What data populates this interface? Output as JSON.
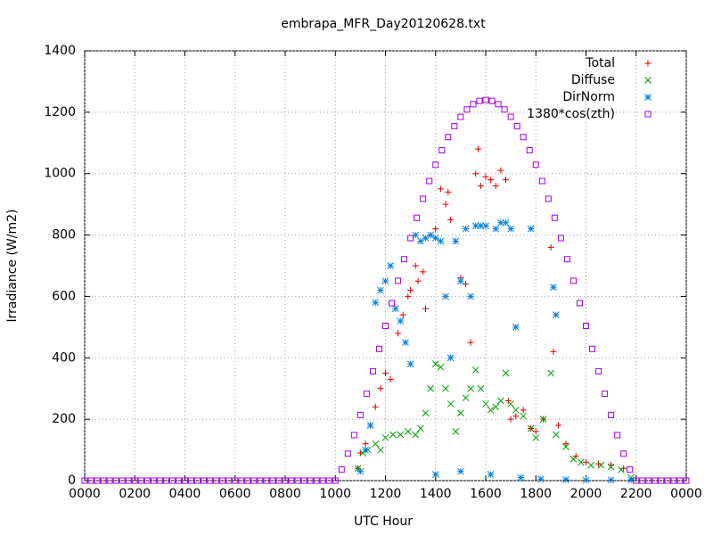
{
  "chart_data": {
    "type": "scatter",
    "title": "embrapa_MFR_Day20120628.txt",
    "x_label": "UTC Hour",
    "y_label": "Irradiance (W/m2)",
    "xlim": [
      0,
      24
    ],
    "ylim": [
      0,
      1400
    ],
    "xticks": [
      {
        "value": 0,
        "label": "0000"
      },
      {
        "value": 2,
        "label": "0200"
      },
      {
        "value": 4,
        "label": "0400"
      },
      {
        "value": 6,
        "label": "0600"
      },
      {
        "value": 8,
        "label": "0800"
      },
      {
        "value": 10,
        "label": "1000"
      },
      {
        "value": 12,
        "label": "1200"
      },
      {
        "value": 14,
        "label": "1400"
      },
      {
        "value": 16,
        "label": "1600"
      },
      {
        "value": 18,
        "label": "1800"
      },
      {
        "value": 20,
        "label": "2000"
      },
      {
        "value": 22,
        "label": "2200"
      },
      {
        "value": 24,
        "label": "0000"
      }
    ],
    "yticks": [
      0,
      200,
      400,
      600,
      800,
      1000,
      1200,
      1400
    ],
    "grid": true,
    "legend": "top-right",
    "series": [
      {
        "name": "Total",
        "color": "#e00000",
        "marker": "plus",
        "x": [
          10.9,
          11.0,
          11.2,
          11.4,
          11.6,
          11.8,
          12.0,
          12.2,
          12.5,
          12.7,
          12.9,
          13.0,
          13.2,
          13.3,
          13.5,
          13.6,
          13.8,
          14.0,
          14.2,
          14.4,
          14.5,
          14.6,
          14.8,
          15.0,
          15.2,
          15.4,
          15.6,
          15.7,
          15.8,
          16.0,
          16.2,
          16.4,
          16.6,
          16.8,
          16.9,
          17.0,
          17.2,
          17.5,
          17.8,
          18.0,
          18.3,
          18.6,
          18.7,
          18.9,
          19.2,
          19.6,
          20.0,
          20.5,
          21.0,
          21.5
        ],
        "values": [
          40,
          90,
          120,
          180,
          240,
          300,
          350,
          330,
          480,
          540,
          600,
          620,
          700,
          650,
          680,
          560,
          800,
          820,
          950,
          900,
          940,
          850,
          780,
          660,
          640,
          450,
          1000,
          1080,
          960,
          990,
          980,
          960,
          1010,
          980,
          260,
          200,
          210,
          230,
          170,
          160,
          200,
          760,
          420,
          180,
          120,
          80,
          60,
          55,
          50,
          40
        ]
      },
      {
        "name": "Diffuse",
        "color": "#00a000",
        "marker": "cross",
        "x": [
          10.9,
          11.1,
          11.3,
          11.6,
          11.8,
          12.0,
          12.3,
          12.6,
          12.9,
          13.2,
          13.4,
          13.6,
          13.8,
          14.0,
          14.2,
          14.4,
          14.6,
          14.8,
          15.0,
          15.2,
          15.4,
          15.6,
          15.8,
          16.0,
          16.2,
          16.4,
          16.6,
          16.8,
          17.0,
          17.2,
          17.5,
          17.8,
          18.0,
          18.3,
          18.6,
          18.8,
          19.2,
          19.5,
          19.8,
          20.2,
          20.6,
          21.0,
          21.4,
          21.8
        ],
        "values": [
          40,
          90,
          100,
          120,
          100,
          140,
          150,
          150,
          160,
          150,
          170,
          220,
          300,
          380,
          370,
          300,
          250,
          160,
          220,
          270,
          300,
          360,
          300,
          250,
          230,
          240,
          260,
          350,
          250,
          230,
          210,
          170,
          140,
          200,
          350,
          150,
          110,
          70,
          60,
          50,
          50,
          45,
          35,
          10
        ]
      },
      {
        "name": "DirNorm",
        "color": "#0080e0",
        "marker": "star",
        "x": [
          11.0,
          11.2,
          11.4,
          11.6,
          11.8,
          12.0,
          12.2,
          12.4,
          12.6,
          12.8,
          13.0,
          13.2,
          13.4,
          13.6,
          13.8,
          14.0,
          14.0,
          14.2,
          14.4,
          14.6,
          14.8,
          15.0,
          15.0,
          15.2,
          15.4,
          15.6,
          15.8,
          16.0,
          16.2,
          16.4,
          16.6,
          16.8,
          17.0,
          17.2,
          17.4,
          17.8,
          18.2,
          18.7,
          18.8,
          19.2,
          20.0,
          21.0,
          21.8
        ],
        "values": [
          30,
          100,
          180,
          580,
          620,
          650,
          700,
          560,
          520,
          450,
          380,
          800,
          780,
          790,
          800,
          790,
          20,
          780,
          600,
          400,
          780,
          650,
          30,
          820,
          600,
          830,
          830,
          830,
          20,
          820,
          840,
          840,
          820,
          500,
          10,
          820,
          5,
          630,
          540,
          3,
          2,
          2,
          2
        ]
      },
      {
        "name": "1380*cos(zth)",
        "color": "#a000e0",
        "marker": "square",
        "x": [
          0,
          0.25,
          0.5,
          0.75,
          1,
          1.25,
          1.5,
          1.75,
          2,
          2.25,
          2.5,
          2.75,
          3,
          3.25,
          3.5,
          3.75,
          4,
          4.25,
          4.5,
          4.75,
          5,
          5.25,
          5.5,
          5.75,
          6,
          6.25,
          6.5,
          6.75,
          7,
          7.25,
          7.5,
          7.75,
          8,
          8.25,
          8.5,
          8.75,
          9,
          9.25,
          9.5,
          9.75,
          10,
          10.25,
          10.5,
          10.75,
          11,
          11.25,
          11.5,
          11.75,
          12,
          12.25,
          12.5,
          12.75,
          13,
          13.25,
          13.5,
          13.75,
          14,
          14.25,
          14.5,
          14.75,
          15,
          15.25,
          15.5,
          15.75,
          16,
          16.25,
          16.5,
          16.75,
          17,
          17.25,
          17.5,
          17.75,
          18,
          18.25,
          18.5,
          18.75,
          19,
          19.25,
          19.5,
          19.75,
          20,
          20.25,
          20.5,
          20.75,
          21,
          21.25,
          21.5,
          21.75,
          22,
          22.25,
          22.5,
          22.75,
          23,
          23.25,
          23.5,
          23.75,
          24
        ],
        "values": [
          0,
          0,
          0,
          0,
          0,
          0,
          0,
          0,
          0,
          0,
          0,
          0,
          0,
          0,
          0,
          0,
          0,
          0,
          0,
          0,
          0,
          0,
          0,
          0,
          0,
          0,
          0,
          0,
          0,
          0,
          0,
          0,
          0,
          0,
          0,
          0,
          0,
          0,
          0,
          0,
          0,
          36,
          88,
          148,
          214,
          283,
          356,
          429,
          504,
          578,
          651,
          721,
          790,
          856,
          918,
          976,
          1029,
          1076,
          1119,
          1155,
          1185,
          1209,
          1226,
          1237,
          1240,
          1237,
          1226,
          1209,
          1185,
          1155,
          1119,
          1076,
          1029,
          976,
          918,
          856,
          790,
          721,
          651,
          578,
          504,
          429,
          356,
          283,
          214,
          148,
          88,
          36,
          0,
          0,
          0,
          0,
          0,
          0,
          0,
          0,
          0
        ]
      }
    ]
  }
}
